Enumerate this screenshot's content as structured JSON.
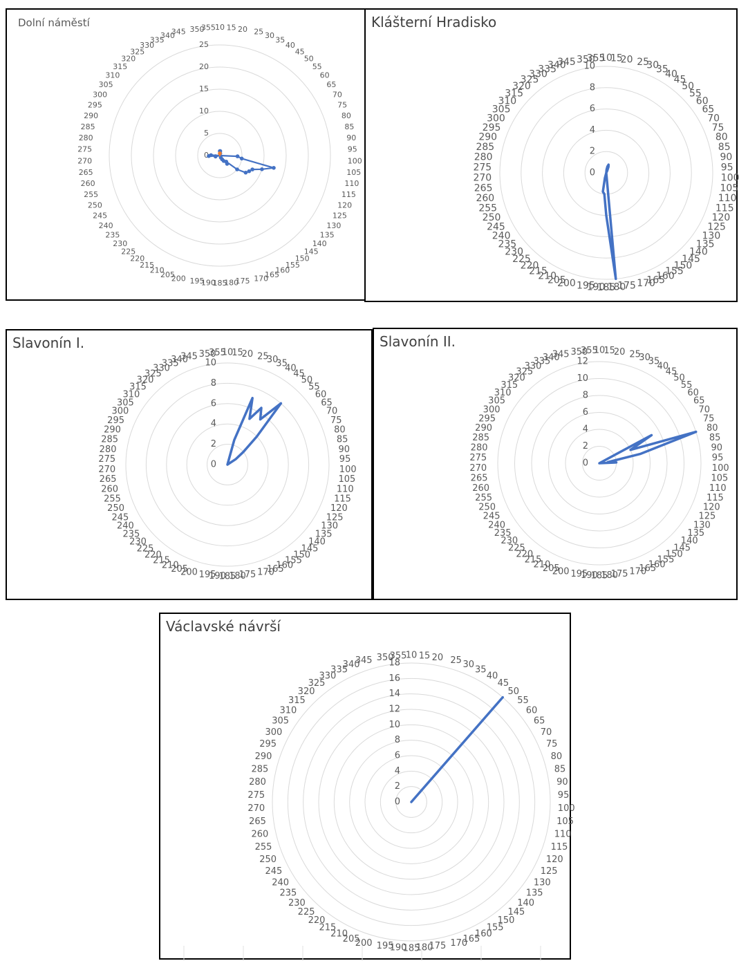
{
  "chart_data": [
    {
      "type": "radar",
      "title": "Dolní náměstí",
      "angles": [
        10,
        15,
        20,
        25,
        30,
        35,
        40,
        45,
        50,
        55,
        60,
        65,
        70,
        75,
        80,
        85,
        90,
        95,
        100,
        105,
        110,
        115,
        120,
        125,
        130,
        135,
        140,
        145,
        150,
        155,
        160,
        165,
        170,
        175,
        180,
        185,
        190,
        195,
        200,
        205,
        210,
        215,
        220,
        225,
        230,
        235,
        240,
        245,
        250,
        255,
        260,
        265,
        270,
        275,
        280,
        285,
        290,
        295,
        300,
        305,
        310,
        315,
        320,
        325,
        330,
        335,
        340,
        345,
        350,
        355
      ],
      "rticks": [
        0,
        5,
        10,
        15,
        20,
        25
      ],
      "rmax": 25,
      "markers": true,
      "series": [
        {
          "color": "#4472c4",
          "values": [
            1,
            1,
            0.5,
            0,
            0,
            0,
            0,
            0,
            0,
            0,
            0,
            0,
            0,
            0,
            0,
            0,
            0,
            0,
            4,
            5,
            12.5,
            10,
            8,
            7.5,
            7,
            5,
            2,
            2.5,
            1.5,
            1,
            0.5,
            0,
            0,
            0,
            0,
            0,
            0,
            0,
            0,
            0,
            0,
            0,
            0,
            0,
            0,
            0,
            0,
            0,
            0,
            0,
            1,
            1,
            2.5,
            2,
            0,
            0,
            0,
            0,
            0,
            0,
            0,
            0,
            0,
            0,
            0,
            0,
            0,
            0,
            0,
            0
          ]
        },
        {
          "color": "#ed7d31",
          "values": [
            0.5,
            0,
            0,
            0,
            0,
            0,
            0,
            0,
            0,
            0,
            0,
            0,
            0,
            0,
            0,
            0,
            0,
            0,
            0,
            0,
            0,
            0,
            0,
            0,
            0,
            0,
            0,
            0,
            0,
            0,
            0,
            0,
            0,
            0,
            0,
            0,
            0,
            0,
            0,
            0,
            0,
            0,
            0,
            0,
            0,
            0,
            0,
            0,
            0,
            0,
            0,
            0,
            0,
            0,
            0,
            0,
            0,
            0,
            0,
            0,
            0,
            0,
            0,
            0,
            0,
            0,
            0,
            0,
            0,
            0
          ]
        }
      ]
    },
    {
      "type": "radar",
      "title": "Klášterní Hradisko",
      "angles": [
        10,
        15,
        20,
        25,
        30,
        35,
        40,
        45,
        50,
        55,
        60,
        65,
        70,
        75,
        80,
        85,
        90,
        95,
        100,
        105,
        110,
        115,
        120,
        125,
        130,
        135,
        140,
        145,
        150,
        155,
        160,
        165,
        170,
        175,
        180,
        185,
        190,
        195,
        200,
        205,
        210,
        215,
        220,
        225,
        230,
        235,
        240,
        245,
        250,
        255,
        260,
        265,
        270,
        275,
        280,
        285,
        290,
        295,
        300,
        305,
        310,
        315,
        320,
        325,
        330,
        335,
        340,
        345,
        350,
        355
      ],
      "rticks": [
        0,
        2,
        4,
        6,
        8,
        10
      ],
      "rmax": 10,
      "markers": false,
      "series": [
        {
          "color": "#4472c4",
          "values": [
            0,
            0.3,
            0.6,
            0.8,
            0.6,
            0.2,
            0,
            0,
            0,
            0,
            0,
            0,
            0,
            0,
            0,
            0,
            0,
            0,
            0,
            0,
            0,
            0,
            0,
            0,
            0,
            0,
            0,
            0,
            0,
            0,
            0,
            0,
            0,
            0,
            10,
            4,
            2,
            1.8,
            0.5,
            0,
            0,
            0,
            0,
            0,
            0,
            0,
            0,
            0,
            0,
            0,
            0,
            0,
            0,
            0,
            0,
            0,
            0,
            0,
            0,
            0,
            0,
            0,
            0,
            0,
            0,
            0,
            0,
            0,
            0,
            0
          ]
        }
      ]
    },
    {
      "type": "radar",
      "title": "Slavonín I.",
      "angles": [
        10,
        15,
        20,
        25,
        30,
        35,
        40,
        45,
        50,
        55,
        60,
        65,
        70,
        75,
        80,
        85,
        90,
        95,
        100,
        105,
        110,
        115,
        120,
        125,
        130,
        135,
        140,
        145,
        150,
        155,
        160,
        165,
        170,
        175,
        180,
        185,
        190,
        195,
        200,
        205,
        210,
        215,
        220,
        225,
        230,
        235,
        240,
        245,
        250,
        255,
        260,
        265,
        270,
        275,
        280,
        285,
        290,
        295,
        300,
        305,
        310,
        315,
        320,
        325,
        330,
        335,
        340,
        345,
        350,
        355
      ],
      "rticks": [
        0,
        2,
        4,
        6,
        8,
        10
      ],
      "rmax": 10,
      "markers": false,
      "series": [
        {
          "color": "#4472c4",
          "values": [
            0,
            0,
            0,
            2.5,
            7,
            5,
            6.5,
            5.5,
            8,
            4,
            2,
            1,
            0,
            0,
            0,
            0,
            0,
            0,
            0,
            0,
            0,
            0,
            0,
            0,
            0,
            0,
            0,
            0,
            0,
            0,
            0,
            0,
            0,
            0,
            0,
            0,
            0,
            0,
            0,
            0,
            0,
            0,
            0,
            0,
            0,
            0,
            0,
            0,
            0,
            0,
            0,
            0,
            0,
            0,
            0,
            0,
            0,
            0,
            0,
            0,
            0,
            0,
            0,
            0,
            0,
            0,
            0,
            0,
            0,
            0
          ]
        }
      ]
    },
    {
      "type": "radar",
      "title": "Slavonín II.",
      "angles": [
        10,
        15,
        20,
        25,
        30,
        35,
        40,
        45,
        50,
        55,
        60,
        65,
        70,
        75,
        80,
        85,
        90,
        95,
        100,
        105,
        110,
        115,
        120,
        125,
        130,
        135,
        140,
        145,
        150,
        155,
        160,
        165,
        170,
        175,
        180,
        185,
        190,
        195,
        200,
        205,
        210,
        215,
        220,
        225,
        230,
        235,
        240,
        245,
        250,
        255,
        260,
        265,
        270,
        275,
        280,
        285,
        290,
        295,
        300,
        305,
        310,
        315,
        320,
        325,
        330,
        335,
        340,
        345,
        350,
        355
      ],
      "rticks": [
        0,
        2,
        4,
        6,
        8,
        10,
        12
      ],
      "rmax": 12,
      "markers": false,
      "series": [
        {
          "color": "#4472c4",
          "values": [
            0,
            0,
            0,
            0,
            0,
            0,
            0,
            0,
            0,
            0,
            0,
            0,
            7,
            4,
            12,
            5,
            1,
            2,
            0,
            0,
            0,
            0,
            0,
            0,
            0,
            0,
            0,
            0,
            0,
            0,
            0,
            0,
            0,
            0,
            0,
            0,
            0,
            0,
            0,
            0,
            0,
            0,
            0,
            0,
            0,
            0,
            0,
            0,
            0,
            0,
            0,
            0,
            0,
            0,
            0,
            0,
            0,
            0,
            0,
            0,
            0,
            0,
            0,
            0,
            0,
            0,
            0,
            0,
            0,
            0
          ]
        }
      ]
    },
    {
      "type": "radar",
      "title": "Václavské návrší",
      "angles": [
        10,
        15,
        20,
        25,
        30,
        35,
        40,
        45,
        50,
        55,
        60,
        65,
        70,
        75,
        80,
        85,
        90,
        95,
        100,
        105,
        110,
        115,
        120,
        125,
        130,
        135,
        140,
        145,
        150,
        155,
        160,
        165,
        170,
        175,
        180,
        185,
        190,
        195,
        200,
        205,
        210,
        215,
        220,
        225,
        230,
        235,
        240,
        245,
        250,
        255,
        260,
        265,
        270,
        275,
        280,
        285,
        290,
        295,
        300,
        305,
        310,
        315,
        320,
        325,
        330,
        335,
        340,
        345,
        350,
        355
      ],
      "rticks": [
        0,
        2,
        4,
        6,
        8,
        10,
        12,
        14,
        16,
        18
      ],
      "rmax": 18,
      "markers": false,
      "series": [
        {
          "color": "#4472c4",
          "values": [
            0,
            0,
            0,
            0,
            0,
            0,
            0,
            0,
            18,
            0,
            0,
            0,
            0,
            0,
            0,
            0,
            0,
            0,
            0,
            0,
            0,
            0,
            0,
            0,
            0,
            0,
            0,
            0,
            0,
            0,
            0,
            0,
            0,
            0,
            0,
            0,
            0,
            0,
            0,
            0,
            0,
            0,
            0,
            0,
            0,
            0,
            0,
            0,
            0,
            0,
            0,
            0,
            0,
            0,
            0,
            0,
            0,
            0,
            0,
            0,
            0,
            0,
            0,
            0,
            0,
            0,
            0,
            0,
            0,
            0
          ]
        }
      ]
    }
  ]
}
